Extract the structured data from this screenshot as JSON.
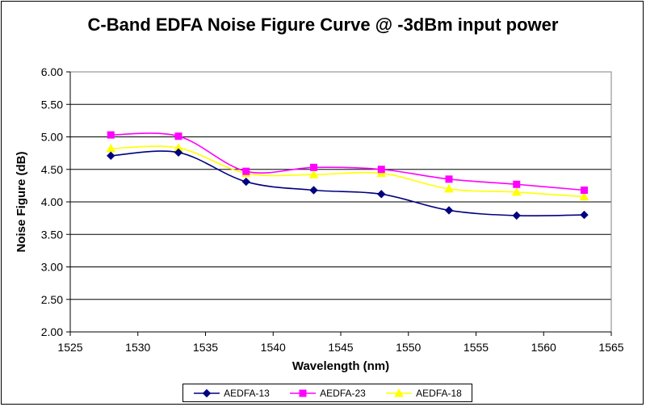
{
  "chart_data": {
    "type": "line",
    "title": "C-Band EDFA Noise Figure Curve @ -3dBm input power",
    "xlabel": "Wavelength (nm)",
    "ylabel": "Noise Figure (dB)",
    "xlim": [
      1525,
      1565
    ],
    "ylim": [
      2.0,
      6.0
    ],
    "xticks": [
      1525,
      1530,
      1535,
      1540,
      1545,
      1550,
      1555,
      1560,
      1565
    ],
    "xtick_labels": [
      "1525",
      "1530",
      "1535",
      "1540",
      "1545",
      "1550",
      "1555",
      "1560",
      "1565"
    ],
    "yticks": [
      2.0,
      2.5,
      3.0,
      3.5,
      4.0,
      4.5,
      5.0,
      5.5,
      6.0
    ],
    "ytick_labels": [
      "2.00",
      "2.50",
      "3.00",
      "3.50",
      "4.00",
      "4.50",
      "5.00",
      "5.50",
      "6.00"
    ],
    "grid": "horizontal",
    "legend_position": "bottom",
    "x": [
      1528,
      1533,
      1538,
      1543,
      1548,
      1553,
      1558,
      1563
    ],
    "series": [
      {
        "name": "AEDFA-13",
        "color": "#000080",
        "marker": "diamond",
        "values": [
          4.71,
          4.76,
          4.31,
          4.18,
          4.12,
          3.87,
          3.79,
          3.8
        ]
      },
      {
        "name": "AEDFA-23",
        "color": "#ff00ff",
        "marker": "square",
        "values": [
          5.03,
          5.01,
          4.47,
          4.53,
          4.5,
          4.35,
          4.27,
          4.18
        ]
      },
      {
        "name": "AEDFA-18",
        "color": "#ffff00",
        "marker": "triangle",
        "values": [
          4.82,
          4.83,
          4.44,
          4.42,
          4.44,
          4.2,
          4.15,
          4.08
        ]
      }
    ]
  }
}
